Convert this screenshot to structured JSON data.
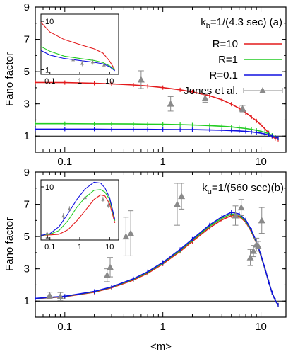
{
  "colors": {
    "red": "#e31a1c",
    "green": "#22cc22",
    "blue": "#1010e0",
    "gray": "#8a8a8a",
    "black": "#000000"
  },
  "chart_data": [
    {
      "type": "line",
      "panel": "top",
      "annotation": "k_b=1/(4.3 sec) (a)",
      "annotation_parts": {
        "k": "k",
        "sub": "b",
        "rest": "=1/(4.3 sec) (a)"
      },
      "ylabel": "Fano factor",
      "xlabel": "",
      "xscale": "log",
      "xlim": [
        0.05,
        18
      ],
      "ylim": [
        0,
        9
      ],
      "yticks": [
        "1",
        "3",
        "5",
        "7",
        "9"
      ],
      "xticks": [
        "0.1",
        "1",
        "10"
      ],
      "reference_line": 1,
      "legend_position": "top-right",
      "series": [
        {
          "name": "R=10",
          "color": "red",
          "x": [
            0.05,
            0.1,
            0.2,
            0.3,
            0.5,
            0.7,
            1,
            1.5,
            2,
            3,
            4,
            5,
            6,
            7,
            8,
            9,
            10,
            11,
            12,
            13,
            14,
            15
          ],
          "y": [
            4.33,
            4.32,
            4.28,
            4.24,
            4.17,
            4.11,
            4.01,
            3.87,
            3.74,
            3.5,
            3.25,
            2.98,
            2.72,
            2.45,
            2.19,
            1.94,
            1.7,
            1.45,
            1.2,
            0.98,
            0.85,
            0.8
          ]
        },
        {
          "name": "R=1",
          "color": "green",
          "x": [
            0.05,
            0.1,
            0.2,
            0.3,
            0.5,
            0.7,
            1,
            1.5,
            2,
            3,
            4,
            5,
            6,
            7,
            8,
            9,
            10,
            11,
            12,
            13,
            14,
            15
          ],
          "y": [
            1.77,
            1.77,
            1.76,
            1.76,
            1.75,
            1.74,
            1.73,
            1.71,
            1.69,
            1.65,
            1.61,
            1.57,
            1.52,
            1.47,
            1.42,
            1.36,
            1.3,
            1.23,
            1.15,
            1.05,
            0.95,
            0.88
          ]
        },
        {
          "name": "R=0.1",
          "color": "blue",
          "x": [
            0.05,
            0.1,
            0.2,
            0.3,
            0.5,
            0.7,
            1,
            1.5,
            2,
            3,
            4,
            5,
            6,
            7,
            8,
            9,
            10,
            11,
            12,
            13,
            14,
            15
          ],
          "y": [
            1.43,
            1.43,
            1.43,
            1.42,
            1.42,
            1.42,
            1.41,
            1.4,
            1.4,
            1.38,
            1.36,
            1.34,
            1.32,
            1.29,
            1.26,
            1.22,
            1.18,
            1.13,
            1.07,
            1.0,
            0.93,
            0.88
          ]
        },
        {
          "name": "Jones et al.",
          "color": "gray",
          "marker": "triangle",
          "x": [
            0.6,
            1.2,
            2.7,
            6.5
          ],
          "y": [
            4.5,
            3.0,
            3.35,
            2.7
          ],
          "yerr": [
            0.55,
            0.45,
            0.25,
            0.2
          ]
        }
      ],
      "inset": {
        "xscale": "log",
        "yscale": "log",
        "xlim": [
          0.05,
          20
        ],
        "ylim": [
          0.8,
          14
        ],
        "xticks": [
          "0.1",
          "1",
          "10"
        ],
        "yticks": [
          "1",
          "10"
        ],
        "series": [
          {
            "color": "red",
            "x": [
              0.05,
              0.1,
              0.3,
              1,
              3,
              6,
              10,
              15
            ],
            "y": [
              9.5,
              6.0,
              4.2,
              3.3,
              2.7,
              2.2,
              1.5,
              1.0
            ]
          },
          {
            "color": "green",
            "x": [
              0.05,
              0.1,
              0.3,
              1,
              3,
              6,
              10,
              15
            ],
            "y": [
              3.0,
              2.4,
              1.9,
              1.7,
              1.55,
              1.4,
              1.2,
              1.0
            ]
          },
          {
            "color": "blue",
            "x": [
              0.05,
              0.1,
              0.3,
              1,
              3,
              6,
              10,
              15
            ],
            "y": [
              2.5,
              2.0,
              1.7,
              1.55,
              1.42,
              1.32,
              1.15,
              0.95
            ]
          },
          {
            "color": "gray",
            "marker": "triangle",
            "x": [
              0.6,
              1.2,
              2.7,
              6.5
            ],
            "y": [
              1.6,
              1.35,
              1.45,
              1.25
            ]
          }
        ]
      }
    },
    {
      "type": "line",
      "panel": "bottom",
      "annotation": "k_u=1/(560 sec)(b)",
      "annotation_parts": {
        "k": "k",
        "sub": "u",
        "rest": "=1/(560 sec)(b)"
      },
      "ylabel": "Fano factor",
      "xlabel": "<m>",
      "xscale": "log",
      "xlim": [
        0.05,
        18
      ],
      "ylim": [
        0,
        9
      ],
      "yticks": [
        "1",
        "3",
        "5",
        "7",
        "9"
      ],
      "xticks": [
        "0.1",
        "1",
        "10"
      ],
      "reference_line": 1,
      "series": [
        {
          "name": "R=10",
          "color": "red",
          "x": [
            0.05,
            0.1,
            0.2,
            0.3,
            0.5,
            0.7,
            1,
            1.5,
            2,
            3,
            4,
            5,
            6,
            7,
            8,
            9,
            10,
            11,
            12,
            13,
            14,
            15
          ],
          "y": [
            1.15,
            1.27,
            1.55,
            1.82,
            2.3,
            2.72,
            3.3,
            4.08,
            4.7,
            5.55,
            6.03,
            6.3,
            6.25,
            5.9,
            5.3,
            4.6,
            3.8,
            3.0,
            2.2,
            1.5,
            1.05,
            0.75
          ]
        },
        {
          "name": "R=1",
          "color": "green",
          "x": [
            0.05,
            0.1,
            0.2,
            0.3,
            0.5,
            0.7,
            1,
            1.5,
            2,
            3,
            4,
            5,
            6,
            7,
            8,
            9,
            10,
            11,
            12,
            13,
            14,
            15
          ],
          "y": [
            1.16,
            1.29,
            1.58,
            1.86,
            2.35,
            2.78,
            3.36,
            4.15,
            4.78,
            5.64,
            6.13,
            6.4,
            6.32,
            5.97,
            5.35,
            4.63,
            3.83,
            3.0,
            2.2,
            1.5,
            1.05,
            0.75
          ]
        },
        {
          "name": "R=0.1",
          "color": "blue",
          "x": [
            0.05,
            0.1,
            0.2,
            0.3,
            0.5,
            0.7,
            1,
            1.5,
            2,
            3,
            4,
            5,
            6,
            7,
            8,
            9,
            10,
            11,
            12,
            13,
            14,
            15
          ],
          "y": [
            1.17,
            1.3,
            1.6,
            1.88,
            2.38,
            2.82,
            3.4,
            4.2,
            4.84,
            5.72,
            6.22,
            6.5,
            6.4,
            6.03,
            5.4,
            4.68,
            3.86,
            3.02,
            2.2,
            1.5,
            1.05,
            0.75
          ]
        },
        {
          "name": "Jones et al.",
          "color": "gray",
          "marker": "triangle",
          "x": [
            0.07,
            0.09,
            0.27,
            0.29,
            0.42,
            0.47,
            1.4,
            1.55,
            5.5,
            6.3,
            7.8,
            8.4,
            9.0,
            9.4,
            10.2
          ],
          "y": [
            1.35,
            1.28,
            2.6,
            3.1,
            5.0,
            5.2,
            7.0,
            7.5,
            6.3,
            6.8,
            3.7,
            4.1,
            4.5,
            4.4,
            6.0
          ],
          "yerr": [
            0.2,
            0.25,
            0.4,
            0.6,
            1.2,
            1.4,
            1.3,
            0.8,
            0.6,
            0.5,
            0.5,
            0.35,
            0.4,
            0.3,
            0.8
          ]
        }
      ],
      "inset": {
        "xscale": "log",
        "yscale": "log",
        "xlim": [
          0.05,
          20
        ],
        "ylim": [
          0.8,
          14
        ],
        "xticks": [
          "0.1",
          "1",
          "10"
        ],
        "yticks": [
          "1",
          "10"
        ],
        "series": [
          {
            "color": "red",
            "x": [
              0.05,
              0.1,
              0.2,
              0.4,
              0.8,
              1.5,
              3,
              5,
              7,
              10,
              15
            ],
            "y": [
              1.0,
              1.02,
              1.05,
              1.3,
              2.0,
              3.2,
              5.5,
              6.8,
              6.5,
              4.5,
              1.8
            ]
          },
          {
            "color": "green",
            "x": [
              0.05,
              0.1,
              0.2,
              0.4,
              0.8,
              1.5,
              3,
              5,
              7,
              10,
              15
            ],
            "y": [
              1.0,
              1.05,
              1.25,
              2.0,
              3.8,
              6.0,
              8.5,
              8.8,
              7.8,
              5.5,
              2.0
            ]
          },
          {
            "color": "blue",
            "x": [
              0.05,
              0.1,
              0.2,
              0.4,
              0.8,
              1.5,
              3,
              5,
              7,
              10,
              15
            ],
            "y": [
              1.0,
              1.08,
              1.5,
              2.8,
              5.5,
              9.0,
              12.5,
              12.0,
              9.5,
              6.0,
              2.1
            ]
          },
          {
            "color": "gray",
            "marker": "triangle",
            "x": [
              0.08,
              0.28,
              0.45,
              1.5,
              6,
              9
            ],
            "y": [
              1.1,
              2.5,
              3.5,
              6.0,
              5.5,
              4.2
            ]
          }
        ]
      }
    }
  ]
}
